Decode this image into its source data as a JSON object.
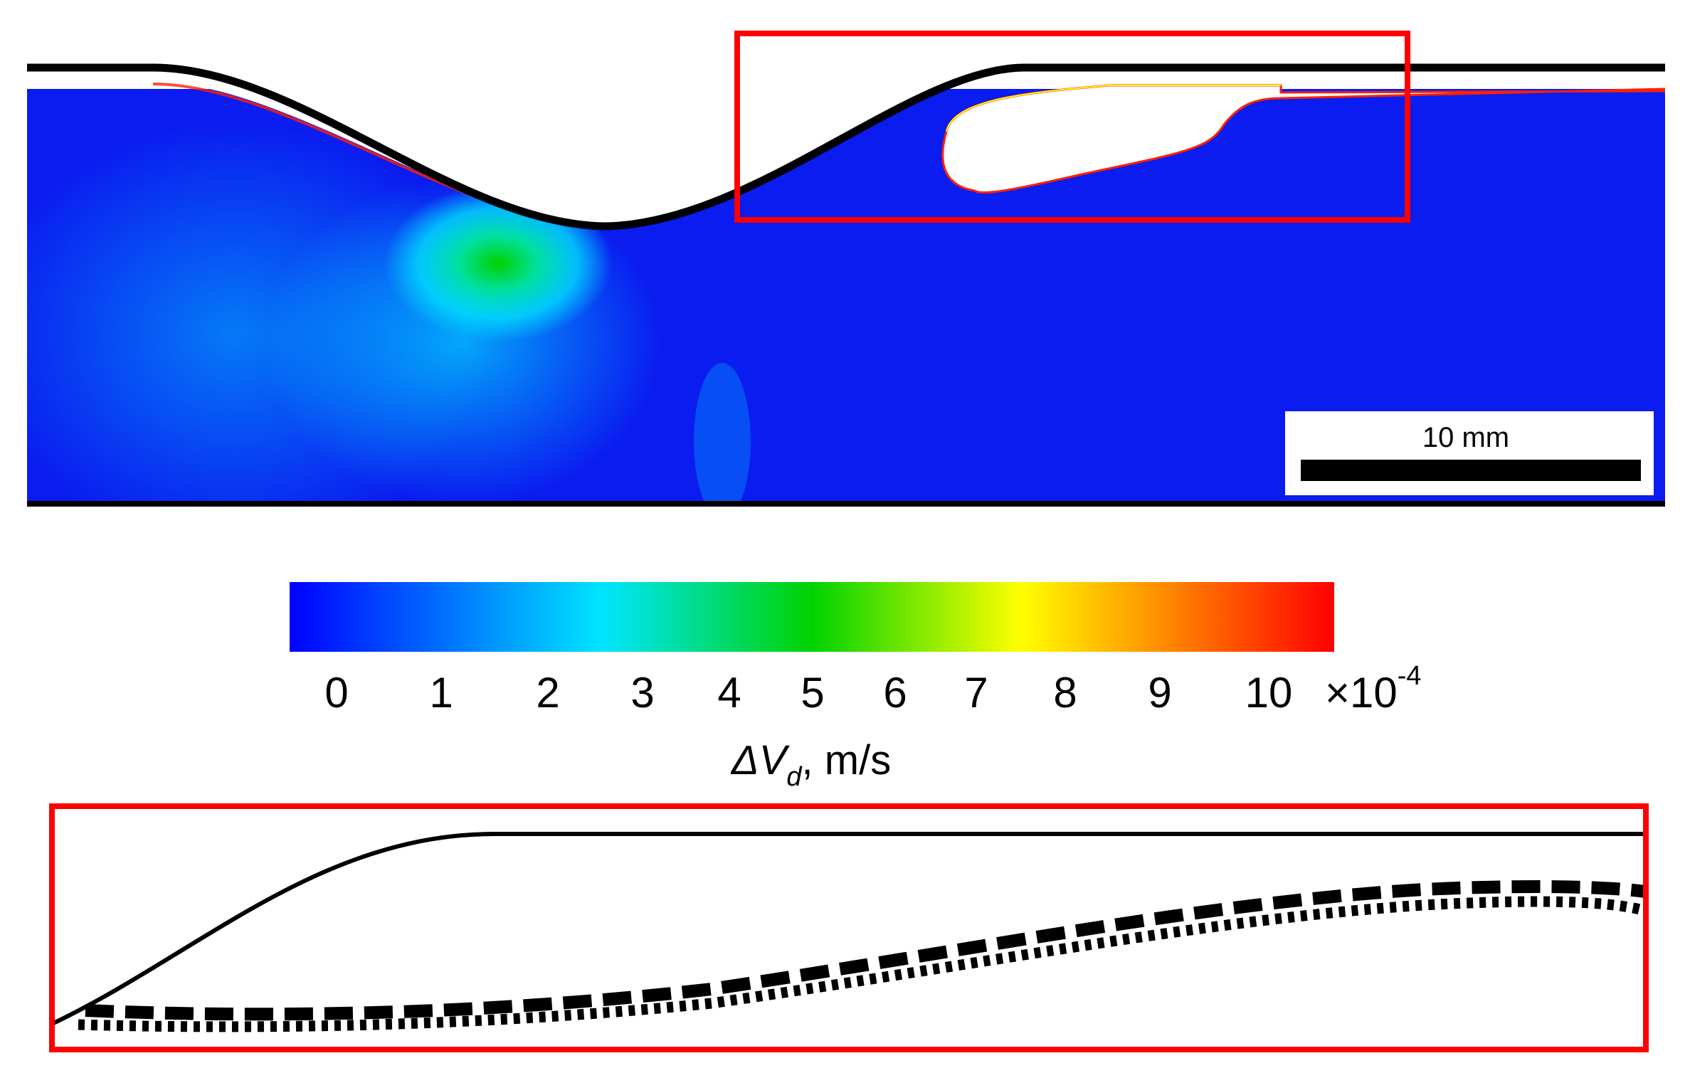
{
  "scale_bar": {
    "label": "10 mm"
  },
  "colorbar": {
    "ticks": [
      "0",
      "1",
      "2",
      "3",
      "4",
      "5",
      "6",
      "7",
      "8",
      "9",
      "10"
    ],
    "multiplier": "×10",
    "multiplier_exponent": "-4",
    "label": "ΔV",
    "label_subscript": "d",
    "label_units": ", m/s",
    "colors": [
      "#0000ff",
      "#00e5ff",
      "#00d200",
      "#ffff00",
      "#ff0000"
    ]
  },
  "highlight_color": "#ff0000"
}
